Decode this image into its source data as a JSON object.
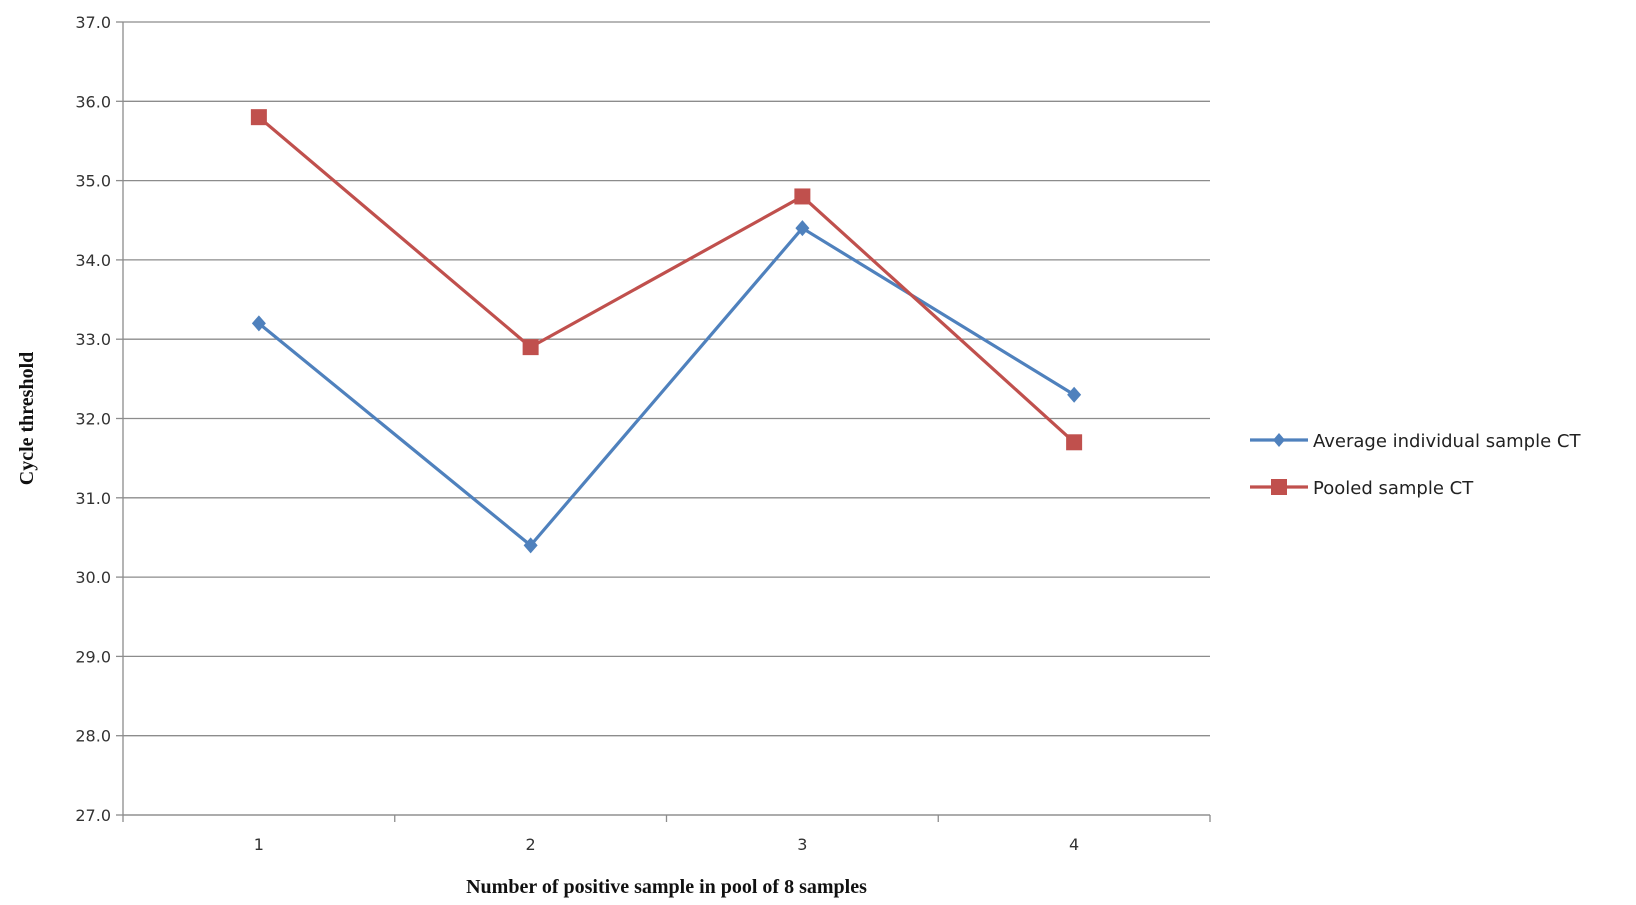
{
  "chart_data": {
    "type": "line",
    "xlabel": "Number  of positive  sample  in pool  of 8 samples",
    "ylabel": "Cycle threshold",
    "categories": [
      "1",
      "2",
      "3",
      "4"
    ],
    "ylim": [
      27.0,
      37.0
    ],
    "yticks": [
      "27.0",
      "28.0",
      "29.0",
      "30.0",
      "31.0",
      "32.0",
      "33.0",
      "34.0",
      "35.0",
      "36.0",
      "37.0"
    ],
    "grid": true,
    "legend_position": "right",
    "series": [
      {
        "name": "Average individual sample CT",
        "values": [
          33.2,
          30.4,
          34.4,
          32.3
        ],
        "color": "#4f81bd",
        "marker": "diamond"
      },
      {
        "name": "Pooled sample CT",
        "values": [
          35.8,
          32.9,
          34.8,
          31.7
        ],
        "color": "#c0504d",
        "marker": "square"
      }
    ]
  }
}
